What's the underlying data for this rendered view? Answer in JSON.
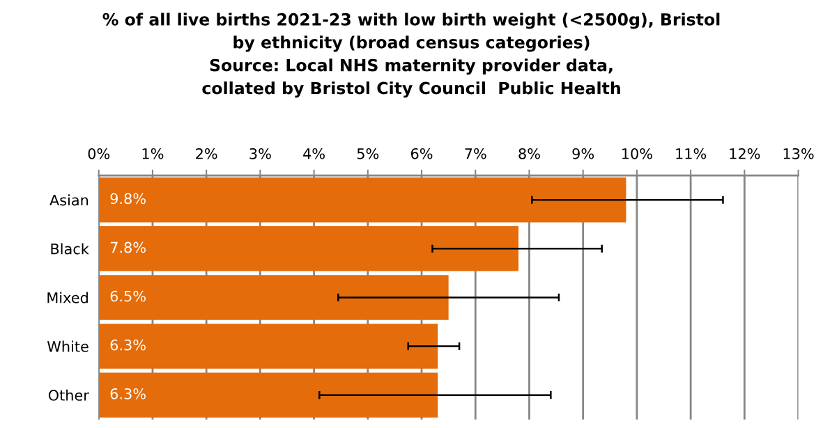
{
  "chart_data": {
    "type": "bar",
    "orientation": "horizontal",
    "title": "% of all live births 2021-23 with low birth weight (<2500g), Bristol\nby ethnicity (broad census categories)\nSource: Local NHS maternity provider data,\ncollated by Bristol City Council  Public Health",
    "categories": [
      "Asian",
      "Black",
      "Mixed",
      "White",
      "Other"
    ],
    "values": [
      9.8,
      7.8,
      6.5,
      6.3,
      6.3
    ],
    "value_labels": [
      "9.8%",
      "7.8%",
      "6.5%",
      "6.3%",
      "6.3%"
    ],
    "errors": [
      [
        8.05,
        11.6
      ],
      [
        6.2,
        9.35
      ],
      [
        4.45,
        8.55
      ],
      [
        5.75,
        6.7
      ],
      [
        4.1,
        8.4
      ]
    ],
    "color": "#e46c0a",
    "xlim": [
      0,
      13
    ],
    "xticks": [
      {
        "value": 0,
        "label": "0%"
      },
      {
        "value": 1,
        "label": "1%"
      },
      {
        "value": 2,
        "label": "2%"
      },
      {
        "value": 3,
        "label": "3%"
      },
      {
        "value": 4,
        "label": "4%"
      },
      {
        "value": 5,
        "label": "5%"
      },
      {
        "value": 6,
        "label": "6%"
      },
      {
        "value": 7,
        "label": "7%"
      },
      {
        "value": 8,
        "label": "8%"
      },
      {
        "value": 9,
        "label": "9%"
      },
      {
        "value": 10,
        "label": "10%"
      },
      {
        "value": 11,
        "label": "11%"
      },
      {
        "value": 12,
        "label": "12%"
      },
      {
        "value": 13,
        "label": "13%"
      }
    ],
    "grid": "x"
  }
}
